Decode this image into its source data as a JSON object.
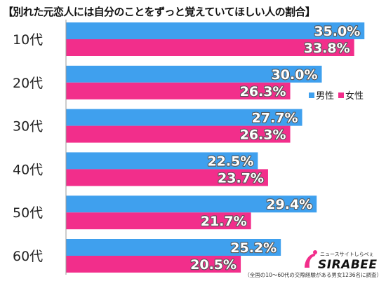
{
  "title": "【別れた元恋人には自分のことをずっと覚えていてほしい人の割合】",
  "footnote": "（全国の10〜60代の交際経験がある男女1236名に調査）",
  "colors": {
    "male": "#3fa0ee",
    "female": "#f22e8b",
    "gridline": "#999999"
  },
  "logo": {
    "tagline": "ニュースサイトしらべぇ",
    "brand": "SIRABEE"
  },
  "chart_data": {
    "type": "bar",
    "orientation": "horizontal",
    "title": "【別れた元恋人には自分のことをずっと覚えていてほしい人の割合】",
    "categories": [
      "10代",
      "20代",
      "30代",
      "40代",
      "50代",
      "60代"
    ],
    "series": [
      {
        "name": "男性",
        "values": [
          35.0,
          30.0,
          27.7,
          22.5,
          29.4,
          25.2
        ]
      },
      {
        "name": "女性",
        "values": [
          33.8,
          26.3,
          26.3,
          23.7,
          21.7,
          20.5
        ]
      }
    ],
    "value_format": "%",
    "xlim": [
      0,
      50
    ],
    "grid": false,
    "legend_position": "right"
  }
}
